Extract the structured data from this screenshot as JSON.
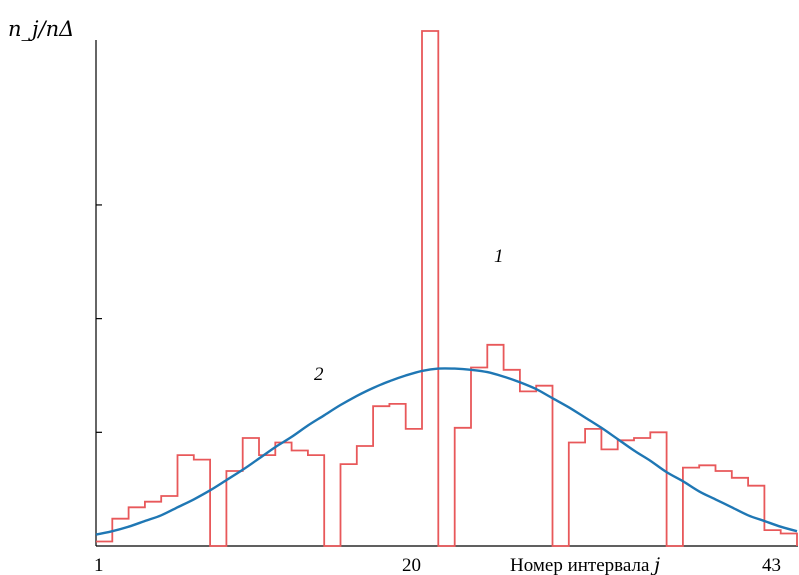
{
  "chart_data": {
    "type": "line",
    "ylabel": "n_j/nΔ",
    "xlabel": "Номер интервала",
    "xlabel_var": "j",
    "x_tick_labels": [
      "1",
      "20",
      "43"
    ],
    "x_range": [
      1,
      44
    ],
    "y_range": [
      0,
      4.53
    ],
    "y_ticks": [
      1,
      2,
      3
    ],
    "grid": false,
    "series": [
      {
        "name": "1",
        "type": "step-histogram",
        "color": "#e8585a",
        "bins": [
          1,
          2,
          3,
          4,
          5,
          6,
          7,
          8,
          9,
          10,
          11,
          12,
          13,
          14,
          15,
          16,
          17,
          18,
          19,
          20,
          21,
          22,
          23,
          24,
          25,
          26,
          27,
          28,
          29,
          30,
          31,
          32,
          33,
          34,
          35,
          36,
          37,
          38,
          39,
          40,
          41,
          42,
          43
        ],
        "values": [
          0.04,
          0.24,
          0.34,
          0.39,
          0.44,
          0.8,
          0.76,
          0,
          0.66,
          0.95,
          0.8,
          0.91,
          0.84,
          0.8,
          0,
          0.72,
          0.88,
          1.23,
          1.25,
          1.03,
          4.53,
          0,
          1.04,
          1.57,
          1.77,
          1.55,
          1.36,
          1.41,
          0,
          0.91,
          1.03,
          0.85,
          0.93,
          0.95,
          1.0,
          0,
          0.69,
          0.71,
          0.66,
          0.6,
          0.53,
          0.14,
          0.11
        ]
      },
      {
        "name": "2",
        "type": "normal-curve",
        "color": "#1f77b4",
        "x": [
          1,
          2,
          3,
          4,
          5,
          6,
          7,
          8,
          9,
          10,
          11,
          12,
          13,
          14,
          15,
          16,
          17,
          18,
          19,
          20,
          21,
          22,
          23,
          24,
          25,
          26,
          27,
          28,
          29,
          30,
          31,
          32,
          33,
          34,
          35,
          36,
          37,
          38,
          39,
          40,
          41,
          42,
          43,
          44
        ],
        "values": [
          0.1,
          0.13,
          0.17,
          0.22,
          0.27,
          0.34,
          0.41,
          0.49,
          0.58,
          0.67,
          0.77,
          0.87,
          0.96,
          1.06,
          1.15,
          1.24,
          1.32,
          1.39,
          1.45,
          1.5,
          1.54,
          1.56,
          1.56,
          1.55,
          1.53,
          1.49,
          1.44,
          1.38,
          1.3,
          1.22,
          1.13,
          1.04,
          0.94,
          0.84,
          0.75,
          0.65,
          0.57,
          0.48,
          0.41,
          0.34,
          0.27,
          0.22,
          0.17,
          0.13
        ]
      }
    ],
    "annotations": [
      {
        "text": "1",
        "series": "1"
      },
      {
        "text": "2",
        "series": "2"
      }
    ]
  }
}
